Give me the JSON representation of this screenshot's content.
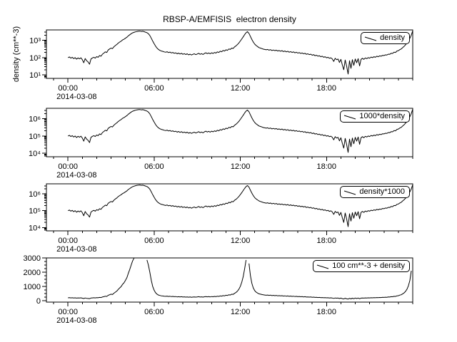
{
  "chart_data": {
    "type": "line",
    "title": "RBSP-A/EMFISIS  electron density",
    "line_color": "#000000",
    "background_color": "#ffffff",
    "grid": false,
    "legend_position": "top-right-inside",
    "x": {
      "date": "2014-03-08",
      "unit": "hours",
      "range_hours": [
        -1.5,
        24
      ],
      "major_tick_hours": [
        0,
        6,
        12,
        18
      ],
      "major_tick_labels": [
        "00:00",
        "06:00",
        "12:00",
        "18:00"
      ],
      "minor_tick_step_hours": 1
    },
    "series": {
      "name": "density",
      "unit": "cm**-3",
      "t_start_hours": 0,
      "t_step_hours": 0.1,
      "log10_values": [
        2.0,
        2.04,
        1.97,
        2.02,
        1.94,
        2.0,
        1.91,
        1.98,
        1.93,
        1.99,
        1.88,
        1.7,
        1.95,
        1.82,
        1.75,
        1.62,
        1.92,
        1.98,
        2.02,
        1.97,
        2.06,
        2.02,
        2.12,
        2.08,
        2.2,
        2.26,
        2.33,
        2.3,
        2.44,
        2.5,
        2.55,
        2.52,
        2.63,
        2.7,
        2.76,
        2.84,
        2.9,
        2.95,
        3.02,
        3.06,
        3.12,
        3.18,
        3.26,
        3.32,
        3.38,
        3.43,
        3.46,
        3.49,
        3.51,
        3.52,
        3.53,
        3.51,
        3.52,
        3.5,
        3.47,
        3.44,
        3.38,
        3.28,
        3.12,
        2.95,
        2.8,
        2.66,
        2.55,
        2.47,
        2.42,
        2.38,
        2.36,
        2.33,
        2.31,
        2.34,
        2.29,
        2.32,
        2.27,
        2.3,
        2.25,
        2.28,
        2.22,
        2.26,
        2.21,
        2.25,
        2.19,
        2.23,
        2.18,
        2.22,
        2.16,
        2.2,
        2.15,
        2.19,
        2.22,
        2.17,
        2.21,
        2.25,
        2.19,
        2.23,
        2.18,
        2.24,
        2.28,
        2.23,
        2.27,
        2.22,
        2.28,
        2.24,
        2.3,
        2.26,
        2.33,
        2.3,
        2.37,
        2.34,
        2.41,
        2.38,
        2.45,
        2.42,
        2.5,
        2.47,
        2.55,
        2.53,
        2.62,
        2.68,
        2.76,
        2.85,
        2.96,
        3.08,
        3.2,
        3.33,
        3.44,
        3.5,
        3.4,
        3.22,
        3.05,
        2.9,
        2.78,
        2.7,
        2.64,
        2.58,
        2.55,
        2.52,
        2.49,
        2.47,
        2.45,
        2.47,
        2.43,
        2.46,
        2.41,
        2.44,
        2.4,
        2.43,
        2.38,
        2.41,
        2.37,
        2.4,
        2.35,
        2.38,
        2.33,
        2.37,
        2.31,
        2.35,
        2.3,
        2.33,
        2.28,
        2.31,
        2.26,
        2.29,
        2.24,
        2.27,
        2.22,
        2.25,
        2.19,
        2.22,
        2.17,
        2.2,
        2.14,
        2.17,
        2.11,
        2.14,
        2.08,
        2.11,
        2.05,
        2.08,
        2.02,
        2.05,
        1.99,
        2.02,
        1.96,
        1.99,
        1.93,
        1.78,
        1.96,
        1.88,
        1.92,
        1.72,
        1.9,
        1.58,
        1.3,
        1.86,
        1.5,
        1.05,
        1.82,
        1.38,
        1.88,
        1.55,
        1.92,
        1.7,
        1.94,
        1.52,
        1.9,
        1.96,
        1.9,
        1.98,
        1.94,
        2.0,
        1.97,
        2.03,
        2.0,
        2.05,
        2.02,
        2.08,
        2.05,
        2.1,
        2.08,
        2.13,
        2.12,
        2.16,
        2.15,
        2.2,
        2.19,
        2.25,
        2.24,
        2.31,
        2.3,
        2.38,
        2.4,
        2.46,
        2.5,
        2.58,
        2.65,
        2.74,
        2.85,
        2.98,
        3.12,
        3.3,
        3.55
      ]
    },
    "panels": [
      {
        "name": "density",
        "legend": "density",
        "ylabel": "density (cm**-3)",
        "scale": "log",
        "y_range_log10": [
          0.8,
          3.6
        ],
        "tick_exponents": [
          1,
          2,
          3
        ],
        "tick_labels": [
          "10¹",
          "10²",
          "10³"
        ],
        "transform": {
          "multiply": 1,
          "add": 0
        }
      },
      {
        "name": "density-times-1000-a",
        "legend": "1000*density",
        "scale": "log",
        "y_range_log10": [
          3.8,
          6.6
        ],
        "tick_exponents": [
          4,
          5,
          6
        ],
        "tick_labels": [
          "10⁴",
          "10⁵",
          "10⁶"
        ],
        "transform": {
          "multiply": 1000,
          "add": 0
        }
      },
      {
        "name": "density-times-1000-b",
        "legend": "density*1000",
        "scale": "log",
        "y_range_log10": [
          3.8,
          6.6
        ],
        "tick_exponents": [
          4,
          5,
          6
        ],
        "tick_labels": [
          "10⁴",
          "10⁵",
          "10⁶"
        ],
        "transform": {
          "multiply": 1000,
          "add": 0
        }
      },
      {
        "name": "density-plus-100",
        "legend": "100 cm**-3 + density",
        "scale": "linear",
        "y_range": [
          -100,
          3000
        ],
        "ticks": [
          0,
          1000,
          2000,
          3000
        ],
        "tick_labels": [
          "0",
          "1000",
          "2000",
          "3000"
        ],
        "minor_tick_step": 250,
        "transform": {
          "multiply": 1,
          "add": 100
        }
      }
    ]
  }
}
